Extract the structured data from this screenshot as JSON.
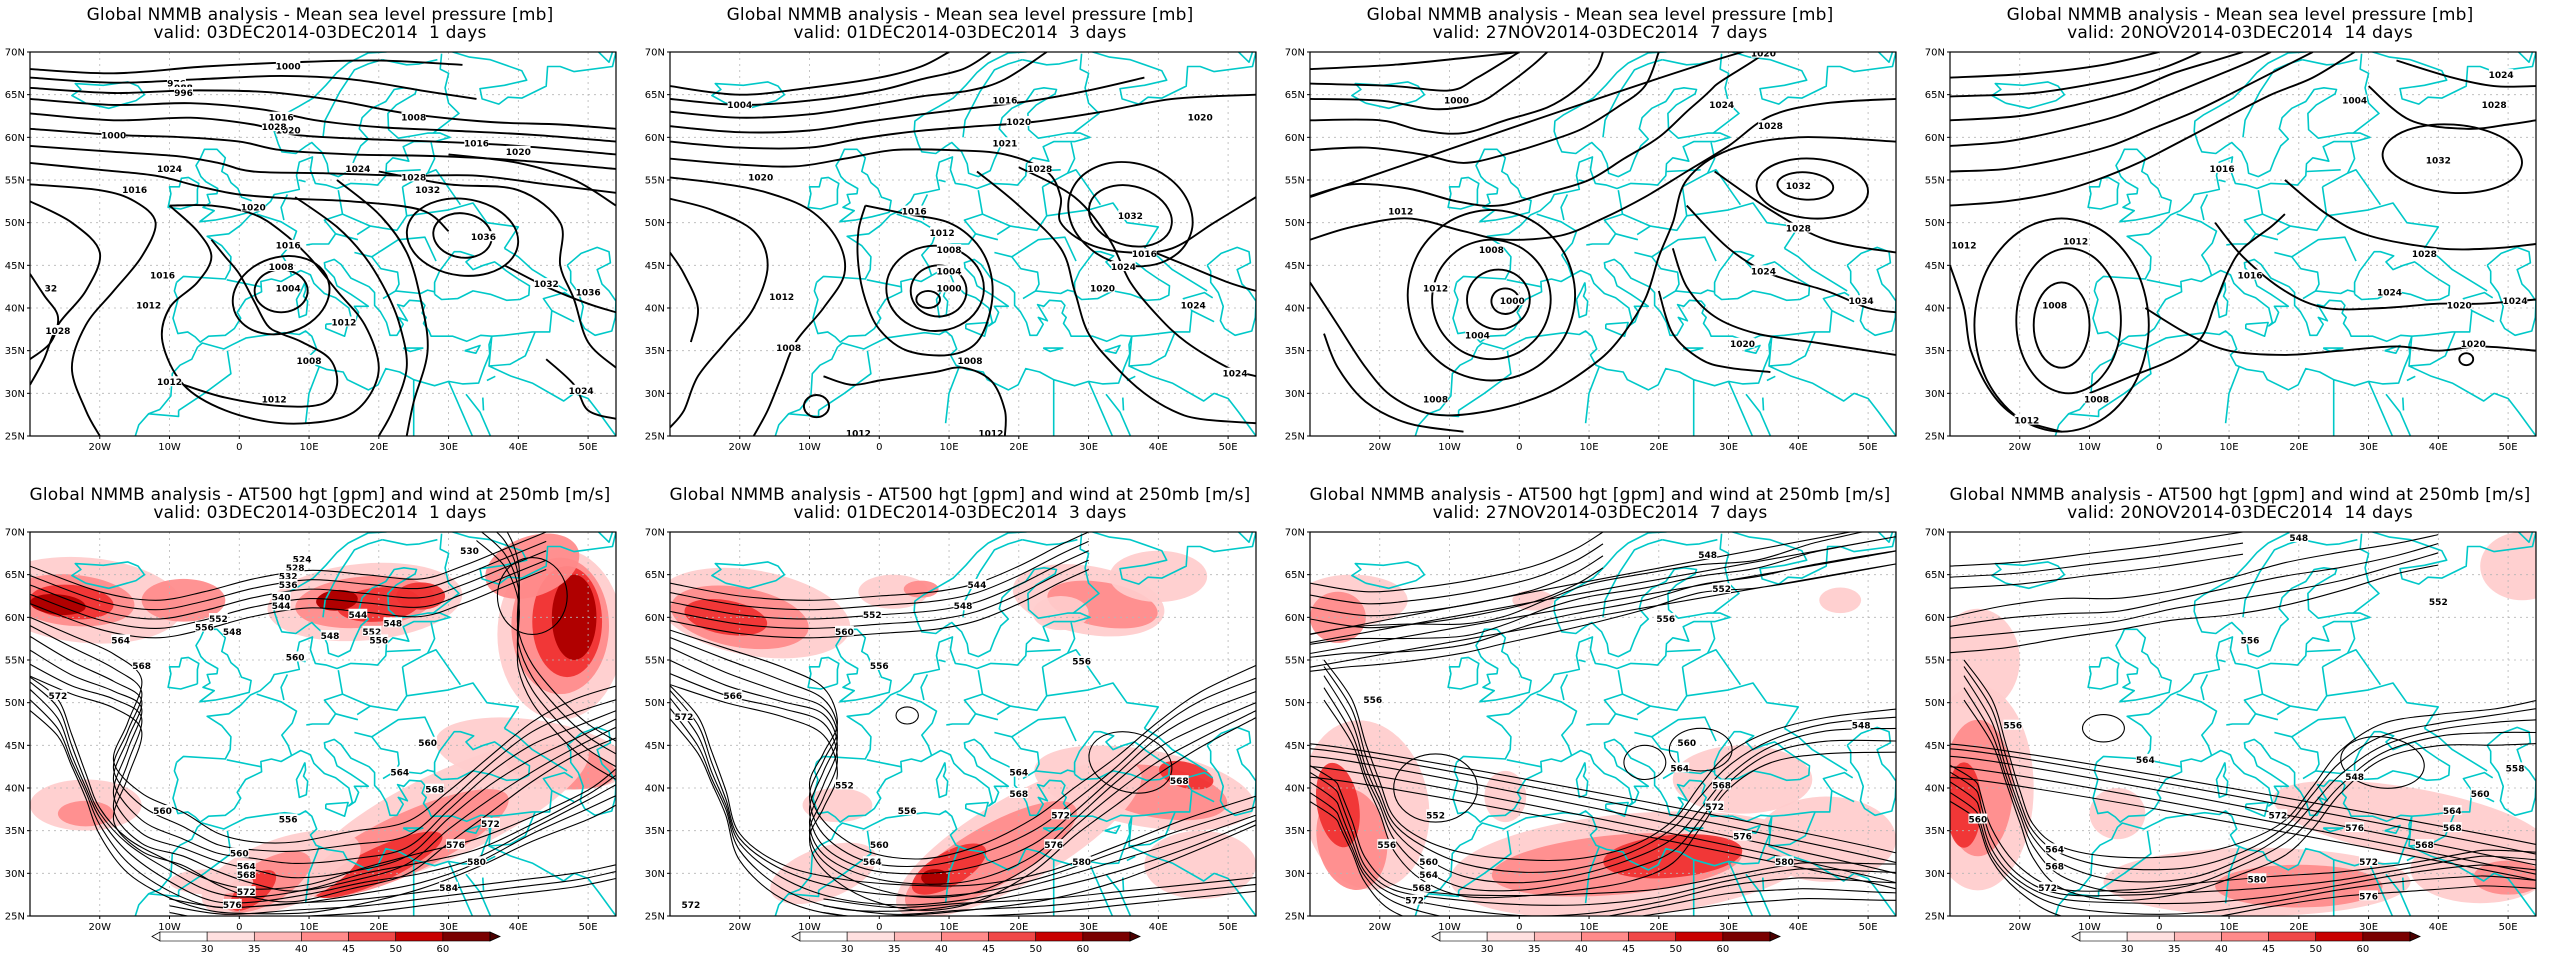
{
  "row_top_titles": [
    {
      "line1": "Global NMMB analysis - Mean sea level pressure [mb]",
      "line2": "valid: 03DEC2014-03DEC2014  1 days"
    },
    {
      "line1": "Global NMMB analysis - Mean sea level pressure [mb]",
      "line2": "valid: 01DEC2014-03DEC2014  3 days"
    },
    {
      "line1": "Global NMMB analysis - Mean sea level pressure [mb]",
      "line2": "valid: 27NOV2014-03DEC2014  7 days"
    },
    {
      "line1": "Global NMMB analysis - Mean sea level pressure [mb]",
      "line2": "valid: 20NOV2014-03DEC2014  14 days"
    }
  ],
  "row_bottom_titles": [
    {
      "line1": "Global NMMB analysis - AT500 hgt [gpm] and wind at 250mb [m/s]",
      "line2": "valid: 03DEC2014-03DEC2014  1 days"
    },
    {
      "line1": "Global NMMB analysis - AT500 hgt [gpm] and wind at 250mb [m/s]",
      "line2": "valid: 01DEC2014-03DEC2014  3 days"
    },
    {
      "line1": "Global NMMB analysis - AT500 hgt [gpm] and wind at 250mb [m/s]",
      "line2": "valid: 27NOV2014-03DEC2014  7 days"
    },
    {
      "line1": "Global NMMB analysis - AT500 hgt [gpm] and wind at 250mb [m/s]",
      "line2": "valid: 20NOV2014-03DEC2014  14 days"
    }
  ],
  "lon_ticks": [
    "20W",
    "10W",
    "0",
    "10E",
    "20E",
    "30E",
    "40E",
    "50E"
  ],
  "lat_ticks": [
    "70N",
    "65N",
    "60N",
    "55N",
    "50N",
    "45N",
    "40N",
    "35N",
    "30N",
    "25N"
  ],
  "colorbar_ticks": [
    "30",
    "35",
    "40",
    "45",
    "50",
    "60"
  ],
  "colors": {
    "coastline": "#00c8c8",
    "contour": "#000000",
    "wind_light": "#ffc8c8",
    "wind_mid": "#ff7070",
    "wind_strong": "#e00000",
    "wind_max": "#6a0000"
  },
  "mslp_labels": [
    [
      {
        "v": "976",
        "lon": -9,
        "lat": 66.3
      },
      {
        "v": "988",
        "lon": -8,
        "lat": 65.8
      },
      {
        "v": "996",
        "lon": -8,
        "lat": 65.2
      },
      {
        "v": "1000",
        "lon": -18,
        "lat": 60.2
      },
      {
        "v": "1000",
        "lon": 7,
        "lat": 68.3
      },
      {
        "v": "1020",
        "lon": 7,
        "lat": 60.8
      },
      {
        "v": "1016",
        "lon": 6,
        "lat": 62.3
      },
      {
        "v": "1028",
        "lon": 5,
        "lat": 61.2
      },
      {
        "v": "1024",
        "lon": -10,
        "lat": 56.3
      },
      {
        "v": "1024",
        "lon": 17,
        "lat": 56.3
      },
      {
        "v": "1016",
        "lon": -15,
        "lat": 53.8
      },
      {
        "v": "1020",
        "lon": 2,
        "lat": 51.8
      },
      {
        "v": "1016",
        "lon": 7,
        "lat": 47.3
      },
      {
        "v": "1008",
        "lon": 6,
        "lat": 44.8
      },
      {
        "v": "1004",
        "lon": 7,
        "lat": 42.3
      },
      {
        "v": "1016",
        "lon": -11,
        "lat": 43.8
      },
      {
        "v": "1012",
        "lon": -13,
        "lat": 40.3
      },
      {
        "v": "1028",
        "lon": -26,
        "lat": 37.3
      },
      {
        "v": "1012",
        "lon": -10,
        "lat": 31.3
      },
      {
        "v": "1008",
        "lon": 10,
        "lat": 33.8
      },
      {
        "v": "1012",
        "lon": 5,
        "lat": 29.3
      },
      {
        "v": "1012",
        "lon": 15,
        "lat": 38.3
      },
      {
        "v": "1008",
        "lon": 25,
        "lat": 62.3
      },
      {
        "v": "1016",
        "lon": 34,
        "lat": 59.3
      },
      {
        "v": "1020",
        "lon": 40,
        "lat": 58.3
      },
      {
        "v": "1028",
        "lon": 25,
        "lat": 55.3
      },
      {
        "v": "1032",
        "lon": 27,
        "lat": 53.8
      },
      {
        "v": "1036",
        "lon": 35,
        "lat": 48.3
      },
      {
        "v": "1032",
        "lon": 44,
        "lat": 42.8
      },
      {
        "v": "1036",
        "lon": 50,
        "lat": 41.8
      },
      {
        "v": "1024",
        "lon": 49,
        "lat": 30.3
      },
      {
        "v": "32",
        "lon": -27,
        "lat": 42.3
      }
    ],
    [
      {
        "v": "1004",
        "lon": -20,
        "lat": 63.8
      },
      {
        "v": "1016",
        "lon": 18,
        "lat": 64.3
      },
      {
        "v": "1020",
        "lon": 20,
        "lat": 61.8
      },
      {
        "v": "1021",
        "lon": 18,
        "lat": 59.3
      },
      {
        "v": "1028",
        "lon": 23,
        "lat": 56.3
      },
      {
        "v": "1020",
        "lon": 46,
        "lat": 62.3
      },
      {
        "v": "1020",
        "lon": -17,
        "lat": 55.3
      },
      {
        "v": "1016",
        "lon": 5,
        "lat": 51.3
      },
      {
        "v": "1012",
        "lon": 9,
        "lat": 48.8
      },
      {
        "v": "1008",
        "lon": 10,
        "lat": 46.8
      },
      {
        "v": "1004",
        "lon": 10,
        "lat": 44.3
      },
      {
        "v": "1000",
        "lon": 10,
        "lat": 42.3
      },
      {
        "v": "1012",
        "lon": -14,
        "lat": 41.3
      },
      {
        "v": "1008",
        "lon": -13,
        "lat": 35.3
      },
      {
        "v": "1008",
        "lon": 13,
        "lat": 33.8
      },
      {
        "v": "1032",
        "lon": 36,
        "lat": 50.8
      },
      {
        "v": "1016",
        "lon": 38,
        "lat": 46.3
      },
      {
        "v": "1024",
        "lon": 35,
        "lat": 44.8
      },
      {
        "v": "1020",
        "lon": 32,
        "lat": 42.3
      },
      {
        "v": "1024",
        "lon": 45,
        "lat": 40.3
      },
      {
        "v": "1024",
        "lon": 51,
        "lat": 32.3
      },
      {
        "v": "1012",
        "lon": -3,
        "lat": 25.3
      },
      {
        "v": "1012",
        "lon": 16,
        "lat": 25.3
      }
    ],
    [
      {
        "v": "1000",
        "lon": -9,
        "lat": 64.3
      },
      {
        "v": "1020",
        "lon": 35,
        "lat": 69.8
      },
      {
        "v": "1024",
        "lon": 29,
        "lat": 63.8
      },
      {
        "v": "1028",
        "lon": 36,
        "lat": 61.3
      },
      {
        "v": "1032",
        "lon": 40,
        "lat": 54.3
      },
      {
        "v": "1028",
        "lon": 40,
        "lat": 49.3
      },
      {
        "v": "1012",
        "lon": -17,
        "lat": 51.3
      },
      {
        "v": "1008",
        "lon": -4,
        "lat": 46.8
      },
      {
        "v": "1012",
        "lon": -12,
        "lat": 42.3
      },
      {
        "v": "1000",
        "lon": -1,
        "lat": 40.8
      },
      {
        "v": "1004",
        "lon": -6,
        "lat": 36.8
      },
      {
        "v": "1008",
        "lon": -12,
        "lat": 29.3
      },
      {
        "v": "1024",
        "lon": 35,
        "lat": 44.3
      },
      {
        "v": "1034",
        "lon": 49,
        "lat": 40.8
      },
      {
        "v": "1020",
        "lon": 32,
        "lat": 35.8
      }
    ],
    [
      {
        "v": "1024",
        "lon": 49,
        "lat": 67.3
      },
      {
        "v": "1028",
        "lon": 48,
        "lat": 63.8
      },
      {
        "v": "1004",
        "lon": 28,
        "lat": 64.3
      },
      {
        "v": "1032",
        "lon": 40,
        "lat": 57.3
      },
      {
        "v": "1016",
        "lon": 9,
        "lat": 56.3
      },
      {
        "v": "1012",
        "lon": -28,
        "lat": 47.3
      },
      {
        "v": "1012",
        "lon": -12,
        "lat": 47.8
      },
      {
        "v": "1008",
        "lon": -15,
        "lat": 40.3
      },
      {
        "v": "1016",
        "lon": 13,
        "lat": 43.8
      },
      {
        "v": "1028",
        "lon": 38,
        "lat": 46.3
      },
      {
        "v": "1024",
        "lon": 33,
        "lat": 41.8
      },
      {
        "v": "1020",
        "lon": 43,
        "lat": 40.3
      },
      {
        "v": "1024",
        "lon": 51,
        "lat": 40.8
      },
      {
        "v": "1020",
        "lon": 45,
        "lat": 35.8
      },
      {
        "v": "1008",
        "lon": -9,
        "lat": 29.3
      },
      {
        "v": "1012",
        "lon": -19,
        "lat": 26.8
      }
    ]
  ],
  "z500_labels": [
    [
      {
        "v": "524",
        "lon": 9,
        "lat": 66.8
      },
      {
        "v": "528",
        "lon": 8,
        "lat": 65.8
      },
      {
        "v": "532",
        "lon": 7,
        "lat": 64.8
      },
      {
        "v": "536",
        "lon": 7,
        "lat": 63.8
      },
      {
        "v": "540",
        "lon": 6,
        "lat": 62.3
      },
      {
        "v": "544",
        "lon": 6,
        "lat": 61.3
      },
      {
        "v": "548",
        "lon": -1,
        "lat": 58.3
      },
      {
        "v": "552",
        "lon": -3,
        "lat": 59.8
      },
      {
        "v": "556",
        "lon": -5,
        "lat": 58.8
      },
      {
        "v": "560",
        "lon": 8,
        "lat": 55.3
      },
      {
        "v": "564",
        "lon": -17,
        "lat": 57.3
      },
      {
        "v": "568",
        "lon": -14,
        "lat": 54.3
      },
      {
        "v": "572",
        "lon": -26,
        "lat": 50.8
      },
      {
        "v": "530",
        "lon": 33,
        "lat": 67.8
      },
      {
        "v": "548",
        "lon": 13,
        "lat": 57.8
      },
      {
        "v": "544",
        "lon": 17,
        "lat": 60.3
      },
      {
        "v": "548",
        "lon": 22,
        "lat": 59.3
      },
      {
        "v": "552",
        "lon": 19,
        "lat": 58.3
      },
      {
        "v": "556",
        "lon": 20,
        "lat": 57.3
      },
      {
        "v": "560",
        "lon": 27,
        "lat": 45.3
      },
      {
        "v": "564",
        "lon": 23,
        "lat": 41.8
      },
      {
        "v": "568",
        "lon": 28,
        "lat": 39.8
      },
      {
        "v": "572",
        "lon": 36,
        "lat": 35.8
      },
      {
        "v": "576",
        "lon": 31,
        "lat": 33.3
      },
      {
        "v": "580",
        "lon": 34,
        "lat": 31.3
      },
      {
        "v": "584",
        "lon": 30,
        "lat": 28.3
      },
      {
        "v": "560",
        "lon": -11,
        "lat": 37.3
      },
      {
        "v": "556",
        "lon": 7,
        "lat": 36.3
      },
      {
        "v": "560",
        "lon": 0,
        "lat": 32.3
      },
      {
        "v": "564",
        "lon": 1,
        "lat": 30.8
      },
      {
        "v": "568",
        "lon": 1,
        "lat": 29.8
      },
      {
        "v": "572",
        "lon": 1,
        "lat": 27.8
      },
      {
        "v": "576",
        "lon": -1,
        "lat": 26.3
      }
    ],
    [
      {
        "v": "544",
        "lon": 14,
        "lat": 63.8
      },
      {
        "v": "548",
        "lon": 12,
        "lat": 61.3
      },
      {
        "v": "552",
        "lon": -1,
        "lat": 60.3
      },
      {
        "v": "560",
        "lon": -5,
        "lat": 58.3
      },
      {
        "v": "556",
        "lon": 0,
        "lat": 54.3
      },
      {
        "v": "566",
        "lon": -21,
        "lat": 50.8
      },
      {
        "v": "572",
        "lon": -28,
        "lat": 48.3
      },
      {
        "v": "556",
        "lon": 29,
        "lat": 54.8
      },
      {
        "v": "564",
        "lon": 20,
        "lat": 41.8
      },
      {
        "v": "552",
        "lon": -5,
        "lat": 40.3
      },
      {
        "v": "556",
        "lon": 4,
        "lat": 37.3
      },
      {
        "v": "560",
        "lon": 0,
        "lat": 33.3
      },
      {
        "v": "564",
        "lon": -1,
        "lat": 31.3
      },
      {
        "v": "568",
        "lon": 20,
        "lat": 39.3
      },
      {
        "v": "572",
        "lon": 26,
        "lat": 36.8
      },
      {
        "v": "576",
        "lon": 25,
        "lat": 33.3
      },
      {
        "v": "580",
        "lon": 29,
        "lat": 31.3
      },
      {
        "v": "568",
        "lon": 43,
        "lat": 40.8
      },
      {
        "v": "572",
        "lon": -27,
        "lat": 26.3
      }
    ],
    [
      {
        "v": "548",
        "lon": 27,
        "lat": 67.3
      },
      {
        "v": "552",
        "lon": 29,
        "lat": 63.3
      },
      {
        "v": "556",
        "lon": 21,
        "lat": 59.8
      },
      {
        "v": "560",
        "lon": 24,
        "lat": 45.3
      },
      {
        "v": "564",
        "lon": 23,
        "lat": 42.3
      },
      {
        "v": "568",
        "lon": 29,
        "lat": 40.3
      },
      {
        "v": "572",
        "lon": 28,
        "lat": 37.8
      },
      {
        "v": "576",
        "lon": 32,
        "lat": 34.3
      },
      {
        "v": "580",
        "lon": 38,
        "lat": 31.3
      },
      {
        "v": "548",
        "lon": 49,
        "lat": 47.3
      },
      {
        "v": "556",
        "lon": -21,
        "lat": 50.3
      },
      {
        "v": "552",
        "lon": -12,
        "lat": 36.8
      },
      {
        "v": "556",
        "lon": -19,
        "lat": 33.3
      },
      {
        "v": "560",
        "lon": -13,
        "lat": 31.3
      },
      {
        "v": "564",
        "lon": -13,
        "lat": 29.8
      },
      {
        "v": "568",
        "lon": -14,
        "lat": 28.3
      },
      {
        "v": "572",
        "lon": -15,
        "lat": 26.8
      }
    ],
    [
      {
        "v": "548",
        "lon": 20,
        "lat": 69.3
      },
      {
        "v": "552",
        "lon": 40,
        "lat": 61.8
      },
      {
        "v": "556",
        "lon": 13,
        "lat": 57.3
      },
      {
        "v": "556",
        "lon": -21,
        "lat": 47.3
      },
      {
        "v": "564",
        "lon": -2,
        "lat": 43.3
      },
      {
        "v": "548",
        "lon": 28,
        "lat": 41.3
      },
      {
        "v": "572",
        "lon": 17,
        "lat": 36.8
      },
      {
        "v": "576",
        "lon": 28,
        "lat": 35.3
      },
      {
        "v": "560",
        "lon": -26,
        "lat": 36.3
      },
      {
        "v": "564",
        "lon": -15,
        "lat": 32.8
      },
      {
        "v": "568",
        "lon": -15,
        "lat": 30.8
      },
      {
        "v": "572",
        "lon": -16,
        "lat": 28.3
      },
      {
        "v": "580",
        "lon": 14,
        "lat": 29.3
      },
      {
        "v": "568",
        "lon": 38,
        "lat": 33.3
      },
      {
        "v": "572",
        "lon": 30,
        "lat": 31.3
      },
      {
        "v": "576",
        "lon": 30,
        "lat": 27.3
      },
      {
        "v": "558",
        "lon": 51,
        "lat": 42.3
      },
      {
        "v": "560",
        "lon": 46,
        "lat": 39.3
      },
      {
        "v": "564",
        "lon": 42,
        "lat": 37.3
      },
      {
        "v": "568",
        "lon": 42,
        "lat": 35.3
      }
    ]
  ]
}
